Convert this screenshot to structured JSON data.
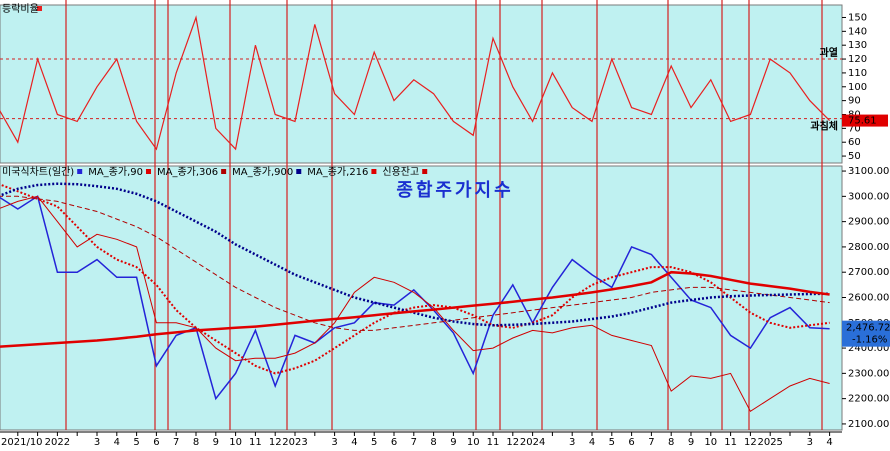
{
  "chart_data": [
    {
      "type": "line",
      "legend_name": "등락비율",
      "series": [
        {
          "name": "등락비율",
          "color": "#e82020",
          "values": [
            85,
            60,
            120,
            80,
            75,
            100,
            120,
            75,
            55,
            110,
            150,
            70,
            55,
            130,
            80,
            75,
            145,
            95,
            80,
            125,
            90,
            105,
            95,
            75,
            65,
            135,
            100,
            75,
            110,
            85,
            75,
            120,
            85,
            80,
            115,
            85,
            105,
            75,
            80,
            120,
            110,
            90,
            75.61
          ]
        }
      ],
      "ylim": [
        45,
        159
      ],
      "yticks": [
        50,
        60,
        70,
        80,
        90,
        100,
        110,
        120,
        130,
        140,
        150
      ],
      "reference_lines": [
        {
          "value": 120,
          "label": "과열"
        },
        {
          "value": 77,
          "label": "과침체"
        }
      ],
      "background": "#bff1f1"
    },
    {
      "type": "line",
      "title": "종합주가지수",
      "categories": [
        "2021/10",
        null,
        null,
        "2022",
        null,
        "3",
        "4",
        "5",
        "6",
        "7",
        "8",
        "9",
        "10",
        "11",
        "12",
        "2023",
        null,
        "3",
        "4",
        "5",
        "6",
        "7",
        "8",
        "9",
        "10",
        "11",
        "12",
        "2024",
        null,
        "3",
        "4",
        "5",
        "6",
        "7",
        "8",
        "9",
        "10",
        "11",
        "12",
        "2025",
        null,
        "3",
        "4"
      ],
      "series": [
        {
          "name": "미국식차트(일간)",
          "color": "#2424d8",
          "style": "solid",
          "width": 1.5,
          "values": [
            3000,
            2950,
            3000,
            2700,
            2700,
            2750,
            2680,
            2680,
            2330,
            2450,
            2480,
            2200,
            2300,
            2470,
            2250,
            2450,
            2420,
            2480,
            2500,
            2580,
            2570,
            2630,
            2550,
            2460,
            2300,
            2530,
            2650,
            2500,
            2640,
            2750,
            2690,
            2640,
            2800,
            2770,
            2680,
            2590,
            2560,
            2450,
            2400,
            2520,
            2560,
            2480,
            2476.72
          ]
        },
        {
          "name": "MA_종가,90",
          "color": "#e00000",
          "style": "dotted",
          "width": 2,
          "values": [
            3050,
            3020,
            2990,
            2960,
            2880,
            2800,
            2750,
            2720,
            2650,
            2550,
            2480,
            2430,
            2380,
            2330,
            2300,
            2320,
            2350,
            2400,
            2450,
            2500,
            2540,
            2560,
            2570,
            2560,
            2530,
            2490,
            2480,
            2500,
            2530,
            2600,
            2650,
            2680,
            2700,
            2720,
            2720,
            2700,
            2660,
            2600,
            2540,
            2500,
            2480,
            2490,
            2500
          ]
        },
        {
          "name": "MA_종가,306",
          "color": "#b00000",
          "style": "dashed",
          "width": 1,
          "values": [
            3000,
            3000,
            2990,
            2980,
            2960,
            2940,
            2910,
            2880,
            2840,
            2790,
            2740,
            2690,
            2640,
            2600,
            2560,
            2530,
            2500,
            2480,
            2470,
            2470,
            2480,
            2490,
            2500,
            2510,
            2520,
            2530,
            2540,
            2550,
            2560,
            2570,
            2580,
            2590,
            2600,
            2620,
            2630,
            2640,
            2640,
            2630,
            2620,
            2610,
            2600,
            2590,
            2580
          ]
        },
        {
          "name": "MA_종가,900",
          "color": "#00008b",
          "style": "dotted",
          "width": 2.5,
          "values": [
            3000,
            3030,
            3045,
            3050,
            3048,
            3040,
            3030,
            3010,
            2980,
            2940,
            2900,
            2860,
            2810,
            2770,
            2730,
            2690,
            2660,
            2630,
            2600,
            2580,
            2560,
            2540,
            2520,
            2505,
            2495,
            2490,
            2492,
            2495,
            2500,
            2505,
            2515,
            2525,
            2540,
            2560,
            2580,
            2590,
            2600,
            2605,
            2608,
            2610,
            2612,
            2614,
            2615
          ]
        },
        {
          "name": "MA_종가,216",
          "color": "#e00000",
          "style": "solid",
          "width": 2.5,
          "values": [
            2405,
            2410,
            2415,
            2420,
            2425,
            2430,
            2437,
            2445,
            2455,
            2462,
            2470,
            2475,
            2480,
            2485,
            2492,
            2500,
            2508,
            2515,
            2522,
            2530,
            2538,
            2545,
            2552,
            2560,
            2568,
            2575,
            2583,
            2592,
            2600,
            2610,
            2620,
            2632,
            2645,
            2660,
            2700,
            2695,
            2685,
            2670,
            2655,
            2645,
            2635,
            2622,
            2612
          ]
        },
        {
          "name": "신용잔고",
          "color": "#d00000",
          "style": "solid",
          "width": 1,
          "values": [
            2950,
            2980,
            3000,
            2900,
            2800,
            2850,
            2830,
            2800,
            2500,
            2500,
            2480,
            2400,
            2350,
            2360,
            2360,
            2380,
            2420,
            2500,
            2620,
            2680,
            2660,
            2620,
            2560,
            2470,
            2390,
            2400,
            2440,
            2470,
            2460,
            2480,
            2490,
            2450,
            2430,
            2410,
            2230,
            2290,
            2280,
            2300,
            2150,
            2200,
            2250,
            2280,
            2260
          ]
        }
      ],
      "ylim": [
        2076,
        3120
      ],
      "yticks": [
        {
          "value": 2100,
          "label": "2100.00"
        },
        {
          "value": 2200,
          "label": "2200.00"
        },
        {
          "value": 2300,
          "label": "2300.00"
        },
        {
          "value": 2400,
          "label": "2400.00"
        },
        {
          "value": 2500,
          "label": "2500.00"
        },
        {
          "value": 2600,
          "label": "2600.00"
        },
        {
          "value": 2700,
          "label": "2700.00"
        },
        {
          "value": 2800,
          "label": "2800.00"
        },
        {
          "value": 2900,
          "label": "2900.00"
        },
        {
          "value": 3000,
          "label": "3000.00"
        },
        {
          "value": 3100,
          "label": "3100.00"
        }
      ],
      "last_value": {
        "value": 2476.72,
        "label": "2,476.72"
      },
      "change_label": "-1.16%",
      "background": "#bff1f1"
    }
  ]
}
